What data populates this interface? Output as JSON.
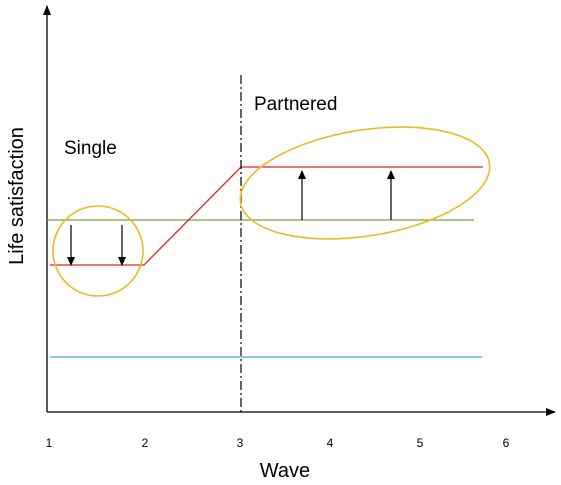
{
  "labels": {
    "single": "Single",
    "partnered": "Partnered",
    "xlabel": "Wave",
    "ylabel": "Life satisfaction"
  },
  "x_ticks": [
    "1",
    "2",
    "3",
    "4",
    "5",
    "6"
  ],
  "colors": {
    "axis": "#000000",
    "trajectory": "#e8231e",
    "reference_line": "#7aa336",
    "baseline": "#4fa3c7",
    "highlight_ellipse": "#f0b823",
    "arrow": "#000000",
    "divider": "#000000"
  },
  "icons": {
    "down_arrow": "arrow-down-icon",
    "up_arrow": "arrow-up-icon"
  }
}
